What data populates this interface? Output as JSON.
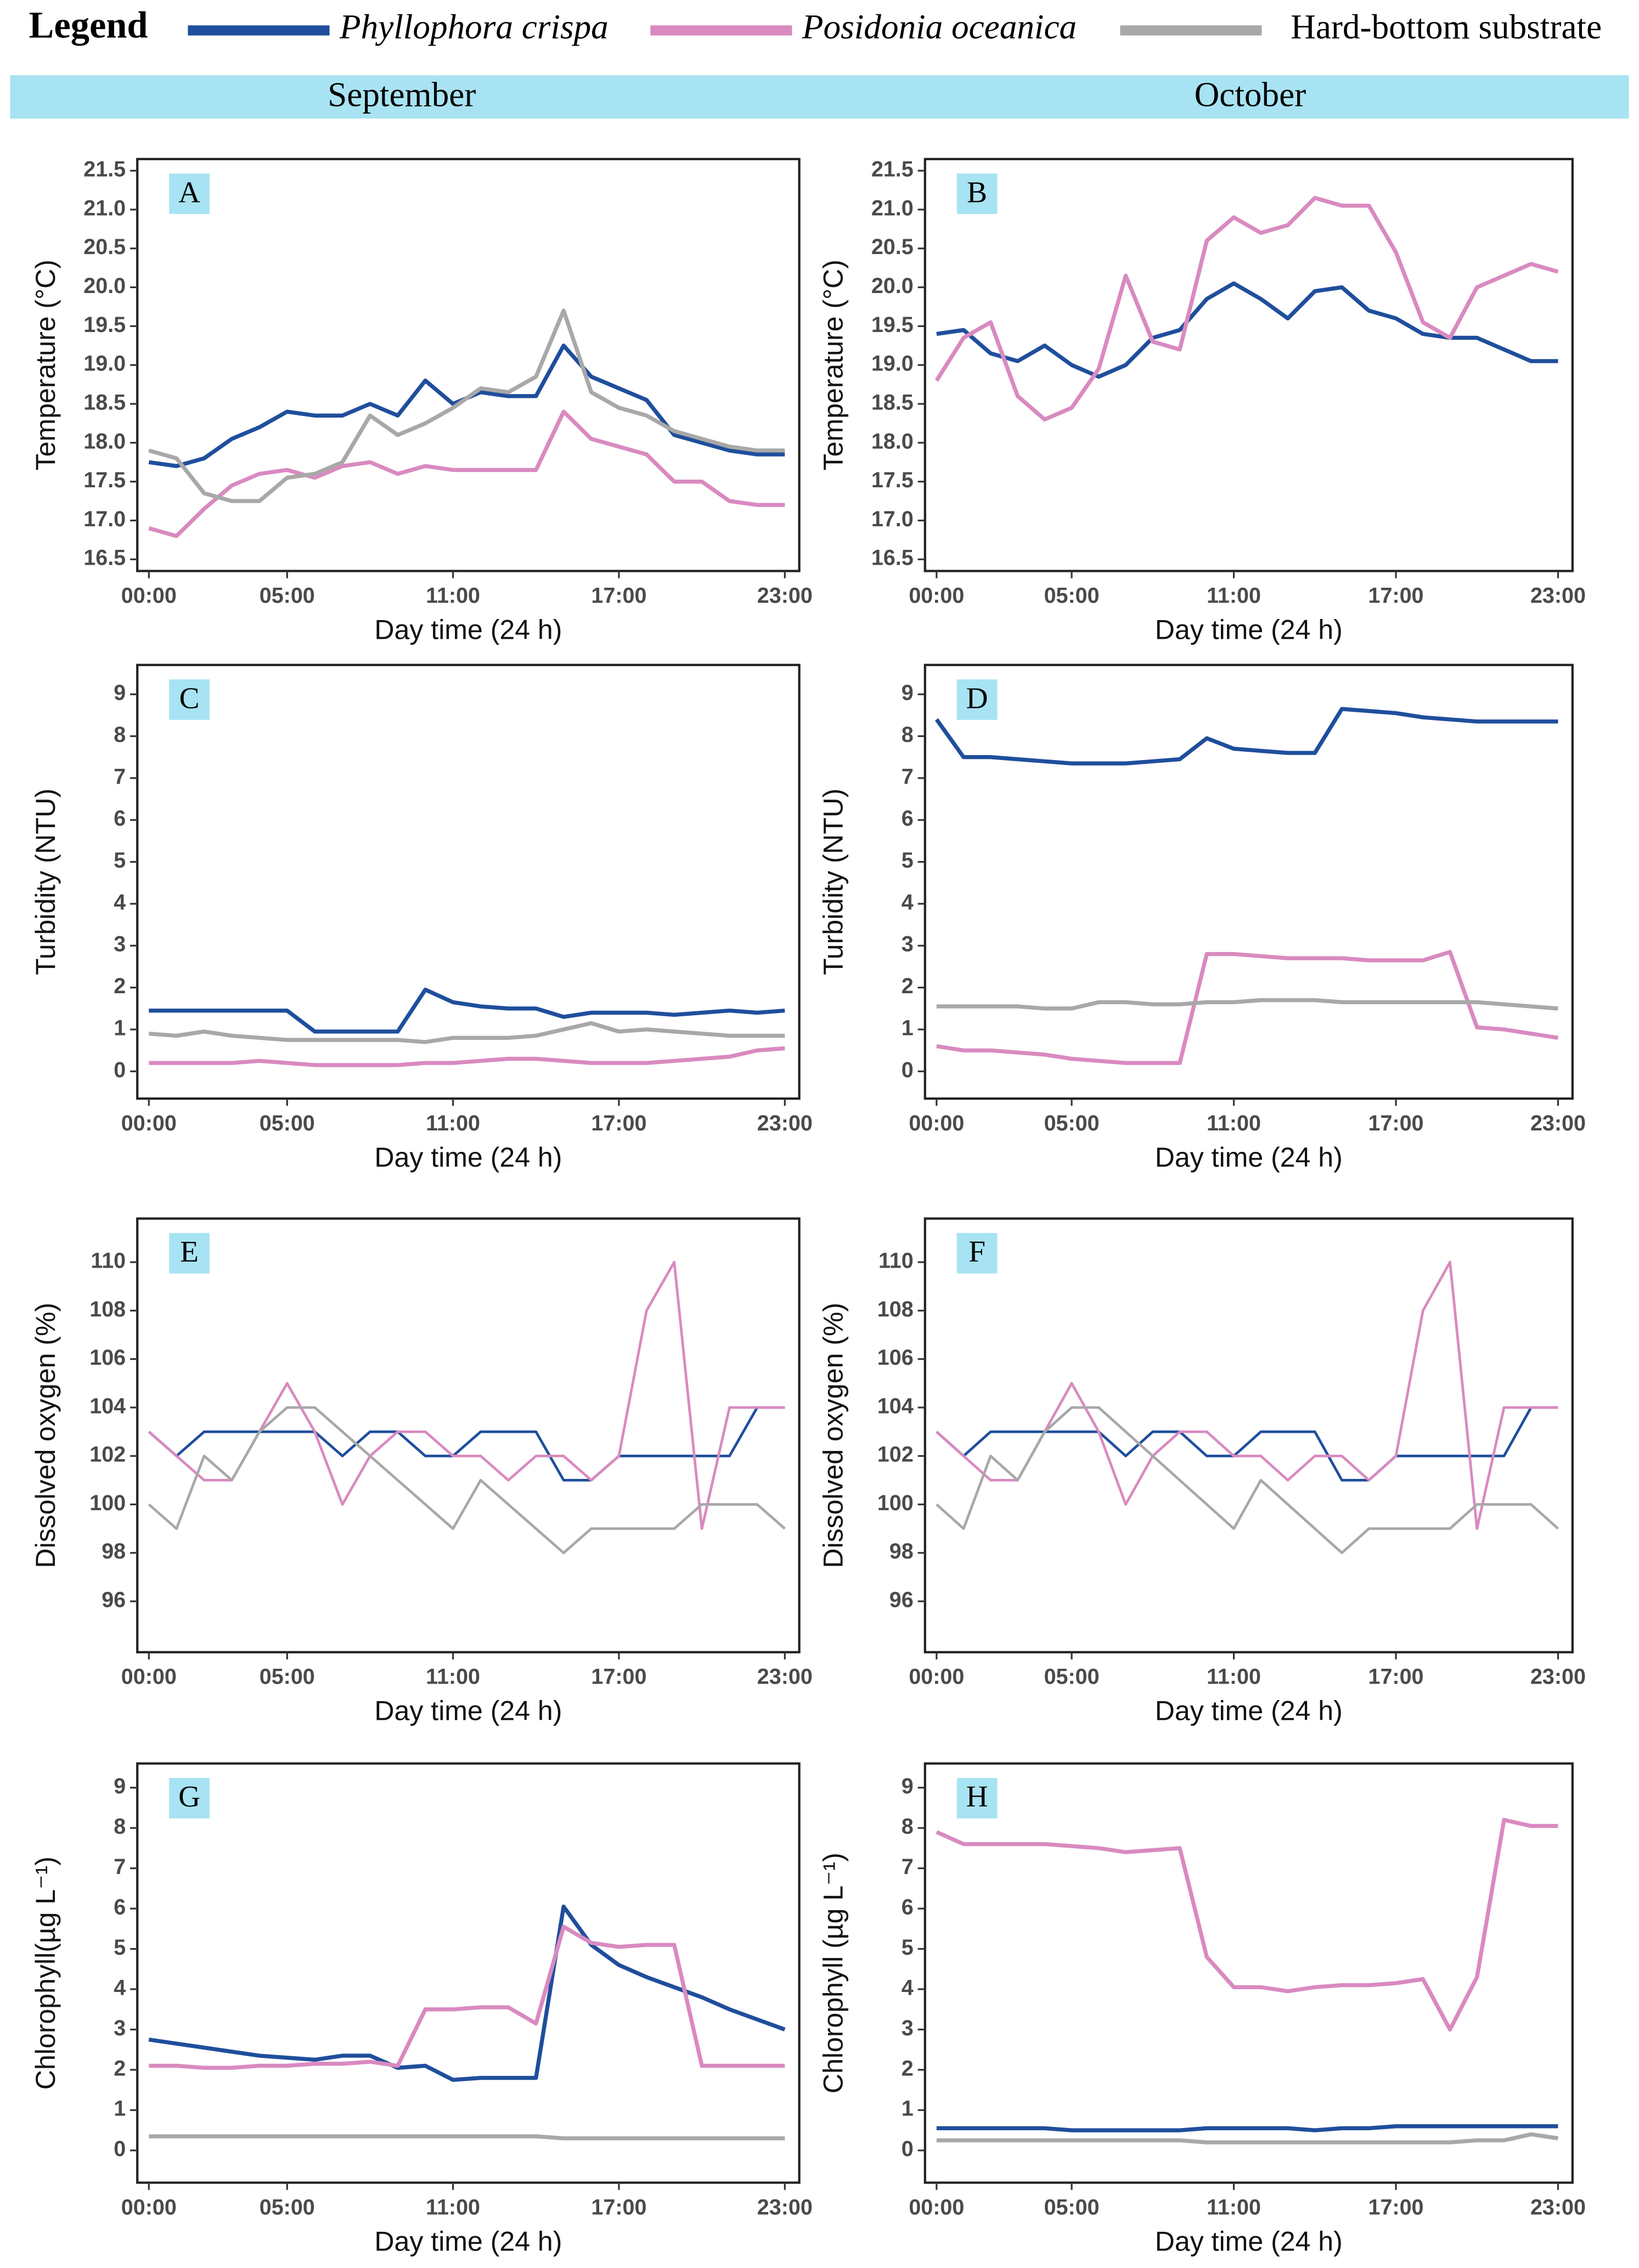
{
  "legend_title": "Legend",
  "columns": [
    "September",
    "October"
  ],
  "chart_data": [
    {
      "type": "line",
      "panel": "A",
      "ylabel": "Temperature (°C)",
      "xlabel": "Day time (24 h)",
      "categories": [
        "00:00",
        null,
        null,
        null,
        null,
        "05:00",
        null,
        null,
        null,
        null,
        null,
        "11:00",
        null,
        null,
        null,
        null,
        null,
        "17:00",
        null,
        null,
        null,
        null,
        null,
        "23:00"
      ],
      "ylim": [
        16.35,
        21.65
      ],
      "yticks": [
        16.5,
        {
          "value": 17,
          "label": "17.0"
        },
        17.5,
        {
          "value": 18,
          "label": "18.0"
        },
        18.5,
        {
          "value": 19,
          "label": "19.0"
        },
        19.5,
        {
          "value": 20,
          "label": "20.0"
        },
        20.5,
        {
          "value": 21,
          "label": "21.0"
        },
        21.5
      ],
      "series": [
        {
          "name": "Phyllophora crispa",
          "color": "#1f4e9c",
          "values": [
            17.75,
            17.7,
            17.8,
            18.05,
            18.2,
            18.4,
            18.35,
            18.35,
            18.5,
            18.35,
            18.8,
            18.5,
            18.65,
            18.6,
            18.6,
            19.25,
            18.85,
            18.7,
            18.55,
            18.1,
            18.0,
            17.9,
            17.85,
            17.85
          ]
        },
        {
          "name": "Posidonia oceanica",
          "color": "#d98ac0",
          "values": [
            16.9,
            16.8,
            17.15,
            17.45,
            17.6,
            17.65,
            17.55,
            17.7,
            17.75,
            17.6,
            17.7,
            17.65,
            17.65,
            17.65,
            17.65,
            18.4,
            18.05,
            17.95,
            17.85,
            17.5,
            17.5,
            17.25,
            17.2,
            17.2
          ]
        },
        {
          "name": "Hard-bottom substrate",
          "color": "#a8a8a8",
          "values": [
            17.9,
            17.8,
            17.35,
            17.25,
            17.25,
            17.55,
            17.6,
            17.75,
            18.35,
            18.1,
            18.25,
            18.45,
            18.7,
            18.65,
            18.85,
            19.7,
            18.65,
            18.45,
            18.35,
            18.15,
            18.05,
            17.95,
            17.9,
            17.9
          ]
        }
      ]
    },
    {
      "type": "line",
      "panel": "B",
      "ylabel": "Temperature (°C)",
      "xlabel": "Day time (24 h)",
      "categories": [
        "00:00",
        null,
        null,
        null,
        null,
        "05:00",
        null,
        null,
        null,
        null,
        null,
        "11:00",
        null,
        null,
        null,
        null,
        null,
        "17:00",
        null,
        null,
        null,
        null,
        null,
        "23:00"
      ],
      "ylim": [
        16.35,
        21.65
      ],
      "yticks": [
        16.5,
        {
          "value": 17,
          "label": "17.0"
        },
        17.5,
        {
          "value": 18,
          "label": "18.0"
        },
        18.5,
        {
          "value": 19,
          "label": "19.0"
        },
        19.5,
        {
          "value": 20,
          "label": "20.0"
        },
        20.5,
        {
          "value": 21,
          "label": "21.0"
        },
        21.5
      ],
      "series": [
        {
          "name": "Phyllophora crispa",
          "color": "#1f4e9c",
          "values": [
            19.4,
            19.45,
            19.15,
            19.05,
            19.25,
            19.0,
            18.85,
            19.0,
            19.35,
            19.45,
            19.85,
            20.05,
            19.85,
            19.6,
            19.95,
            20.0,
            19.7,
            19.6,
            19.4,
            19.35,
            19.35,
            19.2,
            19.05,
            19.05
          ]
        },
        {
          "name": "Posidonia oceanica",
          "color": "#d98ac0",
          "values": [
            18.8,
            19.35,
            19.55,
            18.6,
            18.3,
            18.45,
            18.95,
            20.15,
            19.3,
            19.2,
            20.6,
            20.9,
            20.7,
            20.8,
            21.15,
            21.05,
            21.05,
            20.45,
            19.55,
            19.35,
            20.0,
            20.15,
            20.3,
            20.2
          ]
        }
      ]
    },
    {
      "type": "line",
      "panel": "C",
      "ylabel": "Turbidity (NTU)",
      "xlabel": "Day time (24 h)",
      "categories": [
        "00:00",
        null,
        null,
        null,
        null,
        "05:00",
        null,
        null,
        null,
        null,
        null,
        "11:00",
        null,
        null,
        null,
        null,
        null,
        "17:00",
        null,
        null,
        null,
        null,
        null,
        "23:00"
      ],
      "ylim": [
        -0.65,
        9.7
      ],
      "yticks": [
        0,
        1,
        2,
        3,
        4,
        5,
        6,
        7,
        8,
        9
      ],
      "series": [
        {
          "name": "Phyllophora crispa",
          "color": "#1f4e9c",
          "values": [
            1.45,
            1.45,
            1.45,
            1.45,
            1.45,
            1.45,
            0.95,
            0.95,
            0.95,
            0.95,
            1.95,
            1.65,
            1.55,
            1.5,
            1.5,
            1.3,
            1.4,
            1.4,
            1.4,
            1.35,
            1.4,
            1.45,
            1.4,
            1.45
          ]
        },
        {
          "name": "Posidonia oceanica",
          "color": "#d98ac0",
          "values": [
            0.2,
            0.2,
            0.2,
            0.2,
            0.25,
            0.2,
            0.15,
            0.15,
            0.15,
            0.15,
            0.2,
            0.2,
            0.25,
            0.3,
            0.3,
            0.25,
            0.2,
            0.2,
            0.2,
            0.25,
            0.3,
            0.35,
            0.5,
            0.55
          ]
        },
        {
          "name": "Hard-bottom substrate",
          "color": "#a8a8a8",
          "values": [
            0.9,
            0.85,
            0.95,
            0.85,
            0.8,
            0.75,
            0.75,
            0.75,
            0.75,
            0.75,
            0.7,
            0.8,
            0.8,
            0.8,
            0.85,
            1.0,
            1.15,
            0.95,
            1.0,
            0.95,
            0.9,
            0.85,
            0.85,
            0.85
          ]
        }
      ]
    },
    {
      "type": "line",
      "panel": "D",
      "ylabel": "Turbidity (NTU)",
      "xlabel": "Day time (24 h)",
      "categories": [
        "00:00",
        null,
        null,
        null,
        null,
        "05:00",
        null,
        null,
        null,
        null,
        null,
        "11:00",
        null,
        null,
        null,
        null,
        null,
        "17:00",
        null,
        null,
        null,
        null,
        null,
        "23:00"
      ],
      "ylim": [
        -0.65,
        9.7
      ],
      "yticks": [
        0,
        1,
        2,
        3,
        4,
        5,
        6,
        7,
        8,
        9
      ],
      "series": [
        {
          "name": "Phyllophora crispa",
          "color": "#1f4e9c",
          "values": [
            8.4,
            7.5,
            7.5,
            7.45,
            7.4,
            7.35,
            7.35,
            7.35,
            7.4,
            7.45,
            7.95,
            7.7,
            7.65,
            7.6,
            7.6,
            8.65,
            8.6,
            8.55,
            8.45,
            8.4,
            8.35,
            8.35,
            8.35,
            8.35
          ]
        },
        {
          "name": "Posidonia oceanica",
          "color": "#d98ac0",
          "values": [
            0.6,
            0.5,
            0.5,
            0.45,
            0.4,
            0.3,
            0.25,
            0.2,
            0.2,
            0.2,
            2.8,
            2.8,
            2.75,
            2.7,
            2.7,
            2.7,
            2.65,
            2.65,
            2.65,
            2.85,
            1.05,
            1.0,
            0.9,
            0.8
          ]
        },
        {
          "name": "Hard-bottom substrate",
          "color": "#a8a8a8",
          "values": [
            1.55,
            1.55,
            1.55,
            1.55,
            1.5,
            1.5,
            1.65,
            1.65,
            1.6,
            1.6,
            1.65,
            1.65,
            1.7,
            1.7,
            1.7,
            1.65,
            1.65,
            1.65,
            1.65,
            1.65,
            1.65,
            1.6,
            1.55,
            1.5
          ]
        }
      ]
    },
    {
      "type": "line",
      "panel": "E",
      "ylabel": "Dissolved oxygen (%)",
      "xlabel": "Day time (24 h)",
      "categories": [
        "00:00",
        null,
        null,
        null,
        null,
        "05:00",
        null,
        null,
        null,
        null,
        null,
        "11:00",
        null,
        null,
        null,
        null,
        null,
        "17:00",
        null,
        null,
        null,
        null,
        null,
        "23:00"
      ],
      "ylim": [
        93.9,
        111.8
      ],
      "yticks": [
        96,
        98,
        100,
        102,
        104,
        106,
        108,
        110
      ],
      "series": [
        {
          "name": "Phyllophora crispa",
          "color": "#1f4e9c",
          "values": [
            103,
            102,
            103,
            103,
            103,
            103,
            103,
            102,
            103,
            103,
            102,
            102,
            103,
            103,
            103,
            101,
            101,
            102,
            102,
            102,
            102,
            102,
            104,
            104
          ]
        },
        {
          "name": "Posidonia oceanica",
          "color": "#d98ac0",
          "values": [
            103,
            102,
            101,
            101,
            103,
            105,
            103,
            100,
            102,
            103,
            103,
            102,
            102,
            101,
            102,
            102,
            101,
            102,
            108,
            110,
            99,
            104,
            104,
            104
          ]
        },
        {
          "name": "Hard-bottom substrate",
          "color": "#a8a8a8",
          "values": [
            100,
            99,
            102,
            101,
            103,
            104,
            104,
            103,
            102,
            101,
            100,
            99,
            101,
            100,
            99,
            98,
            99,
            99,
            99,
            99,
            100,
            100,
            100,
            99
          ]
        }
      ]
    },
    {
      "type": "line",
      "panel": "F",
      "ylabel": "Dissolved oxygen (%)",
      "xlabel": "Day time (24 h)",
      "categories": [
        "00:00",
        null,
        null,
        null,
        null,
        "05:00",
        null,
        null,
        null,
        null,
        null,
        "11:00",
        null,
        null,
        null,
        null,
        null,
        "17:00",
        null,
        null,
        null,
        null,
        null,
        "23:00"
      ],
      "ylim": [
        93.9,
        111.8
      ],
      "yticks": [
        96,
        98,
        100,
        102,
        104,
        106,
        108,
        110
      ],
      "series": [
        {
          "name": "Phyllophora crispa",
          "color": "#1f4e9c",
          "values": [
            103,
            102,
            103,
            103,
            103,
            103,
            103,
            102,
            103,
            103,
            102,
            102,
            103,
            103,
            103,
            101,
            101,
            102,
            102,
            102,
            102,
            102,
            104,
            104
          ]
        },
        {
          "name": "Posidonia oceanica",
          "color": "#d98ac0",
          "values": [
            103,
            102,
            101,
            101,
            103,
            105,
            103,
            100,
            102,
            103,
            103,
            102,
            102,
            101,
            102,
            102,
            101,
            102,
            108,
            110,
            99,
            104,
            104,
            104
          ]
        },
        {
          "name": "Hard-bottom substrate",
          "color": "#a8a8a8",
          "values": [
            100,
            99,
            102,
            101,
            103,
            104,
            104,
            103,
            102,
            101,
            100,
            99,
            101,
            100,
            99,
            98,
            99,
            99,
            99,
            99,
            100,
            100,
            100,
            99
          ]
        }
      ]
    },
    {
      "type": "line",
      "panel": "G",
      "ylabel": "Chlorophyll(µg L⁻¹)",
      "xlabel": "Day time (24 h)",
      "categories": [
        "00:00",
        null,
        null,
        null,
        null,
        "05:00",
        null,
        null,
        null,
        null,
        null,
        "11:00",
        null,
        null,
        null,
        null,
        null,
        "17:00",
        null,
        null,
        null,
        null,
        null,
        "23:00"
      ],
      "ylim": [
        -0.8,
        9.6
      ],
      "yticks": [
        0,
        1,
        2,
        3,
        4,
        5,
        6,
        7,
        8,
        9
      ],
      "series": [
        {
          "name": "Phyllophora crispa",
          "color": "#1f4e9c",
          "values": [
            2.75,
            2.65,
            2.55,
            2.45,
            2.35,
            2.3,
            2.25,
            2.35,
            2.35,
            2.05,
            2.1,
            1.75,
            1.8,
            1.8,
            1.8,
            6.05,
            5.1,
            4.6,
            4.3,
            4.05,
            3.8,
            3.5,
            3.25,
            3.0
          ]
        },
        {
          "name": "Posidonia oceanica",
          "color": "#d98ac0",
          "values": [
            2.1,
            2.1,
            2.05,
            2.05,
            2.1,
            2.1,
            2.15,
            2.15,
            2.2,
            2.1,
            3.5,
            3.5,
            3.55,
            3.55,
            3.15,
            5.55,
            5.15,
            5.05,
            5.1,
            5.1,
            2.1,
            2.1,
            2.1,
            2.1
          ]
        },
        {
          "name": "Hard-bottom substrate",
          "color": "#a8a8a8",
          "values": [
            0.35,
            0.35,
            0.35,
            0.35,
            0.35,
            0.35,
            0.35,
            0.35,
            0.35,
            0.35,
            0.35,
            0.35,
            0.35,
            0.35,
            0.35,
            0.3,
            0.3,
            0.3,
            0.3,
            0.3,
            0.3,
            0.3,
            0.3,
            0.3
          ]
        }
      ]
    },
    {
      "type": "line",
      "panel": "H",
      "ylabel": "Chlorophyll (µg L⁻¹)",
      "xlabel": "Day time (24 h)",
      "categories": [
        "00:00",
        null,
        null,
        null,
        null,
        "05:00",
        null,
        null,
        null,
        null,
        null,
        "11:00",
        null,
        null,
        null,
        null,
        null,
        "17:00",
        null,
        null,
        null,
        null,
        null,
        "23:00"
      ],
      "ylim": [
        -0.8,
        9.6
      ],
      "yticks": [
        0,
        1,
        2,
        3,
        4,
        5,
        6,
        7,
        8,
        9
      ],
      "series": [
        {
          "name": "Phyllophora crispa",
          "color": "#1f4e9c",
          "values": [
            0.55,
            0.55,
            0.55,
            0.55,
            0.55,
            0.5,
            0.5,
            0.5,
            0.5,
            0.5,
            0.55,
            0.55,
            0.55,
            0.55,
            0.5,
            0.55,
            0.55,
            0.6,
            0.6,
            0.6,
            0.6,
            0.6,
            0.6,
            0.6
          ]
        },
        {
          "name": "Posidonia oceanica",
          "color": "#d98ac0",
          "values": [
            7.9,
            7.6,
            7.6,
            7.6,
            7.6,
            7.55,
            7.5,
            7.4,
            7.45,
            7.5,
            4.8,
            4.05,
            4.05,
            3.95,
            4.05,
            4.1,
            4.1,
            4.15,
            4.25,
            3.0,
            4.3,
            8.2,
            8.05,
            8.05
          ]
        },
        {
          "name": "Hard-bottom substrate",
          "color": "#a8a8a8",
          "values": [
            0.25,
            0.25,
            0.25,
            0.25,
            0.25,
            0.25,
            0.25,
            0.25,
            0.25,
            0.25,
            0.2,
            0.2,
            0.2,
            0.2,
            0.2,
            0.2,
            0.2,
            0.2,
            0.2,
            0.2,
            0.25,
            0.25,
            0.4,
            0.3
          ]
        }
      ]
    }
  ]
}
